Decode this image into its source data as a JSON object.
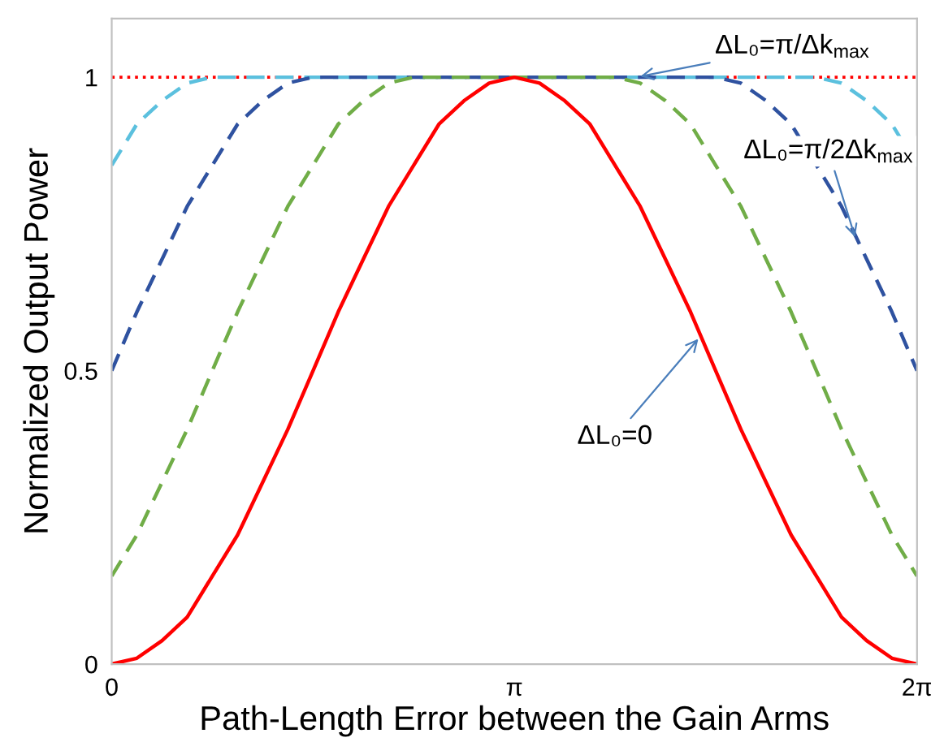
{
  "chart_data": {
    "type": "line",
    "xlabel": "Path-Length Error between the Gain Arms",
    "ylabel": "Normalized Output Power",
    "x": [
      0,
      0.196,
      0.393,
      0.589,
      0.785,
      0.982,
      1.178,
      1.374,
      1.571,
      1.767,
      1.963,
      2.16,
      2.356,
      2.553,
      2.749,
      2.945,
      3.142,
      3.338,
      3.534,
      3.731,
      3.927,
      4.123,
      4.32,
      4.516,
      4.712,
      4.909,
      5.105,
      5.301,
      5.498,
      5.694,
      5.89,
      6.087,
      6.2832
    ],
    "series": [
      {
        "color": "#5bc0de",
        "line_style": "dashed",
        "values": [
          0.85,
          0.92,
          0.96,
          0.99,
          1,
          1,
          1,
          1,
          1,
          1,
          1,
          1,
          1,
          1,
          1,
          1,
          1,
          1,
          1,
          1,
          1,
          1,
          1,
          1,
          1,
          1,
          1,
          1,
          1,
          0.99,
          0.96,
          0.92,
          0.85
        ]
      },
      {
        "color": "#2f52a0",
        "line_style": "dashed",
        "values": [
          0.5,
          0.6,
          0.69,
          0.78,
          0.85,
          0.92,
          0.96,
          0.99,
          1,
          1,
          1,
          1,
          1,
          1,
          1,
          1,
          1,
          1,
          1,
          1,
          1,
          1,
          1,
          1,
          1,
          0.99,
          0.96,
          0.92,
          0.85,
          0.78,
          0.69,
          0.6,
          0.5
        ]
      },
      {
        "color": "#70ad47",
        "line_style": "dashed",
        "values": [
          0.15,
          0.22,
          0.31,
          0.4,
          0.5,
          0.6,
          0.69,
          0.78,
          0.85,
          0.92,
          0.96,
          0.99,
          1,
          1,
          1,
          1,
          1,
          1,
          1,
          1,
          1,
          0.99,
          0.96,
          0.92,
          0.85,
          0.78,
          0.69,
          0.6,
          0.5,
          0.4,
          0.31,
          0.22,
          0.15
        ]
      },
      {
        "color": "#ff0000",
        "line_style": "solid",
        "values": [
          0,
          0.01,
          0.04,
          0.08,
          0.15,
          0.22,
          0.31,
          0.4,
          0.5,
          0.6,
          0.69,
          0.78,
          0.85,
          0.92,
          0.96,
          0.99,
          1,
          0.99,
          0.96,
          0.92,
          0.85,
          0.78,
          0.69,
          0.6,
          0.5,
          0.4,
          0.31,
          0.22,
          0.15,
          0.08,
          0.04,
          0.01,
          0
        ]
      }
    ],
    "ref_lines": [
      {
        "axis": "y",
        "value": 1,
        "color": "#ff0000",
        "line_style": "dotted"
      }
    ],
    "annotations": [
      {
        "text": "ΔL₀=π/Δk$_{max}$",
        "x": 4.09,
        "y": 1
      },
      {
        "text": "ΔL₀=π/2Δk$_{max}$",
        "x": 5.81,
        "y": 0.72
      },
      {
        "text": "ΔL₀=0",
        "x": 4.6,
        "y": 0.56
      }
    ],
    "xlim": [
      0,
      6.2832
    ],
    "ylim": [
      0,
      1.1
    ],
    "xticks": [
      {
        "value": 0,
        "label": "0"
      },
      {
        "value": 3.1416,
        "label": "π"
      },
      {
        "value": 6.2832,
        "label": "2π"
      }
    ],
    "yticks": [
      0,
      0.5,
      1
    ],
    "grid": false,
    "legend": false,
    "marker": "none"
  }
}
